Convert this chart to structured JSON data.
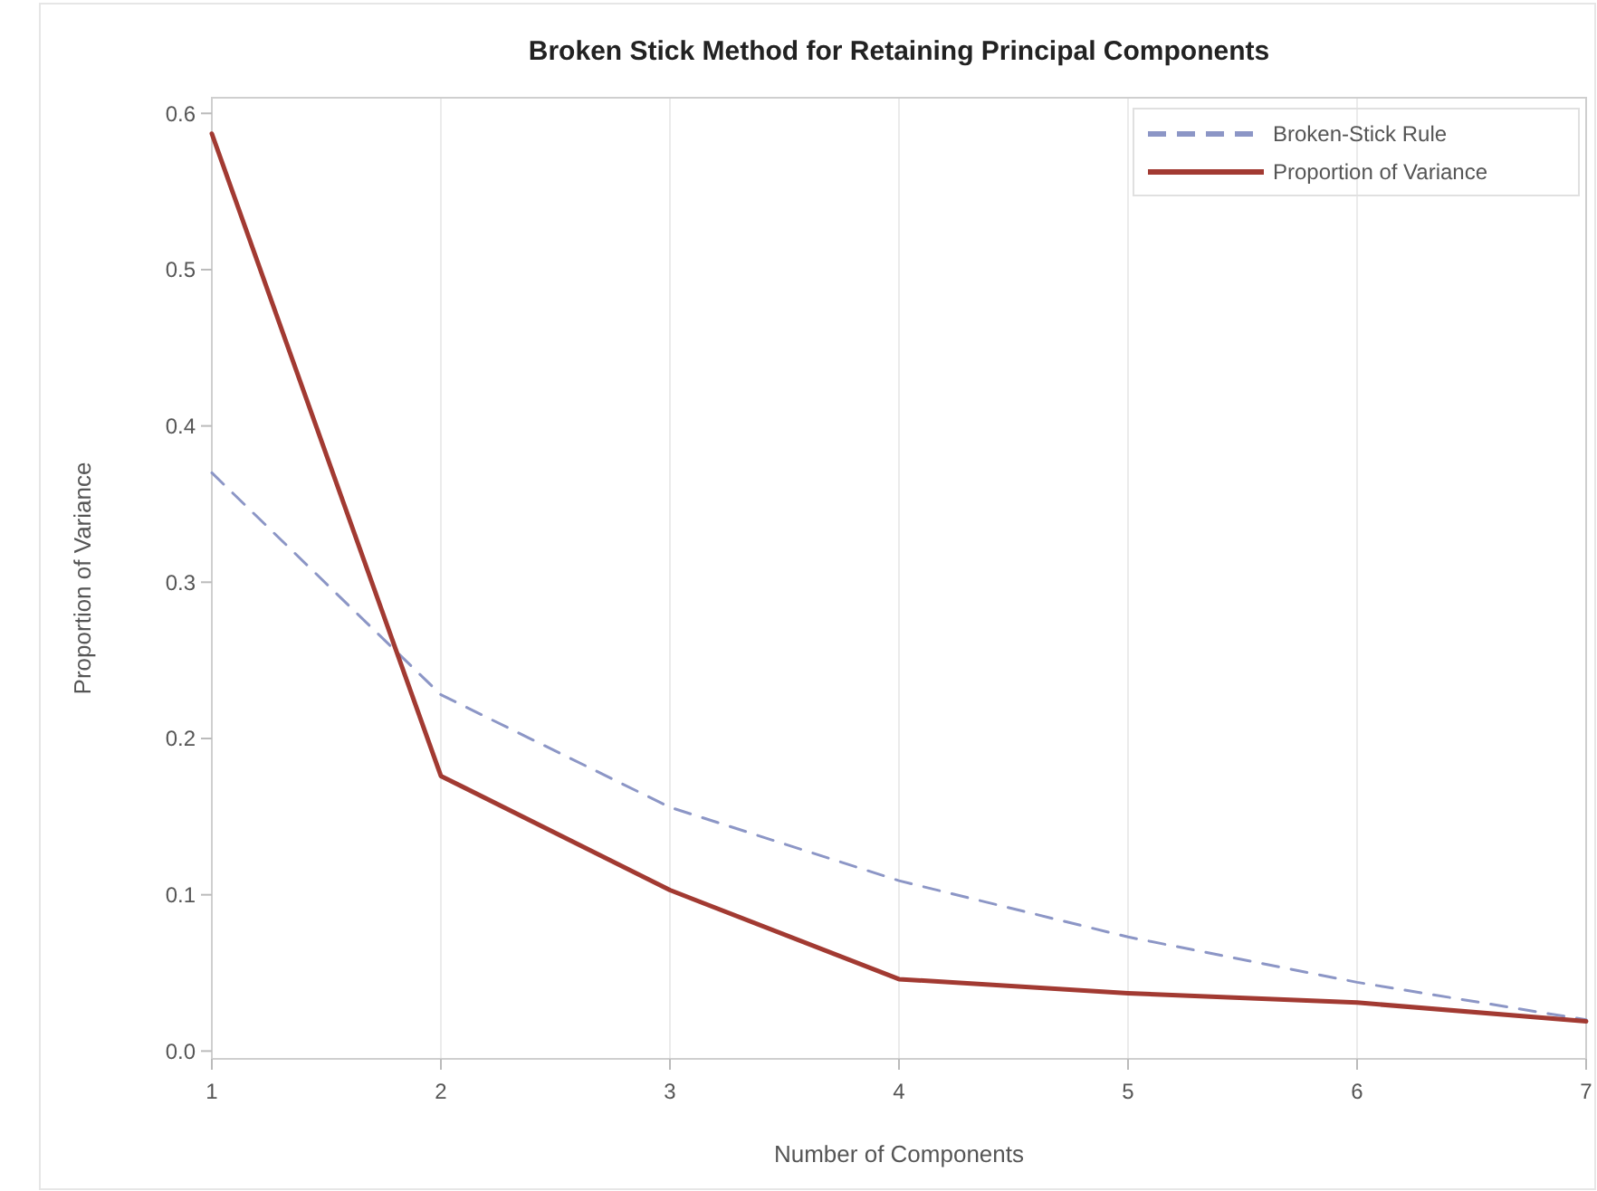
{
  "chart_data": {
    "type": "line",
    "title": "Broken Stick Method for Retaining Principal Components",
    "xlabel": "Number of Components",
    "ylabel": "Proportion of Variance",
    "x": [
      1,
      2,
      3,
      4,
      5,
      6,
      7
    ],
    "series": [
      {
        "name": "Broken-Stick Rule",
        "color": "#8c96c6",
        "line_style": "dashed",
        "values": [
          0.37,
          0.228,
          0.156,
          0.109,
          0.073,
          0.044,
          0.02
        ]
      },
      {
        "name": "Proportion of Variance",
        "color": "#a23a32",
        "line_style": "solid",
        "values": [
          0.587,
          0.176,
          0.103,
          0.046,
          0.037,
          0.031,
          0.019
        ]
      }
    ],
    "xlim": [
      1,
      7
    ],
    "xticks": [
      1,
      2,
      3,
      4,
      5,
      6,
      7
    ],
    "ylim": [
      -0.005,
      0.61
    ],
    "yticks": [
      {
        "value": 0,
        "label": "0.0"
      },
      0.1,
      0.2,
      0.3,
      0.4,
      0.5,
      0.6
    ],
    "grid": "x",
    "legend": "top right",
    "marker": "none"
  }
}
